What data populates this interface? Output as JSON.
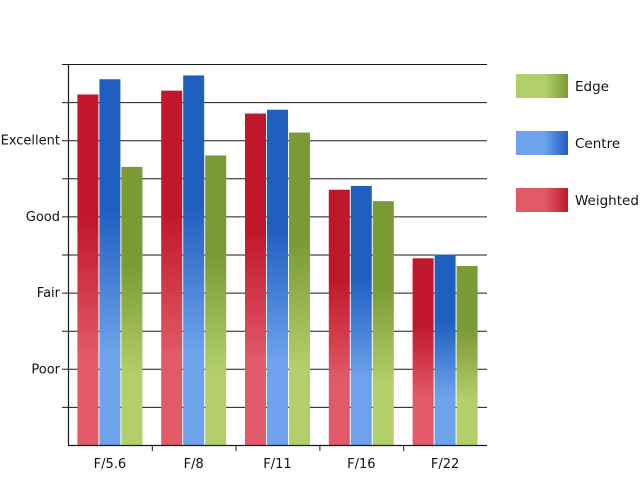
{
  "chart_data": {
    "type": "bar",
    "categories": [
      "F/5.6",
      "F/8",
      "F/11",
      "F/16",
      "F/22"
    ],
    "y_tick_labels": [
      {
        "value": 2,
        "label": "Poor"
      },
      {
        "value": 4,
        "label": "Fair"
      },
      {
        "value": 6,
        "label": "Good"
      },
      {
        "value": 8,
        "label": "Excellent"
      }
    ],
    "ylim": [
      0,
      10
    ],
    "grid": true,
    "legend_position": "right",
    "series": [
      {
        "name": "Weighted",
        "values": [
          9.2,
          9.3,
          8.7,
          6.7,
          4.9
        ],
        "color": "#c0172a",
        "color_light": "#e25a68"
      },
      {
        "name": "Centre",
        "values": [
          9.6,
          9.7,
          8.8,
          6.8,
          5.0
        ],
        "color": "#1f5fc0",
        "color_light": "#6ea2ec"
      },
      {
        "name": "Edge",
        "values": [
          7.3,
          7.6,
          8.2,
          6.4,
          4.7
        ],
        "color": "#7a9a35",
        "color_light": "#b2cf6b"
      }
    ],
    "legend_order": [
      "Edge",
      "Centre",
      "Weighted"
    ]
  }
}
